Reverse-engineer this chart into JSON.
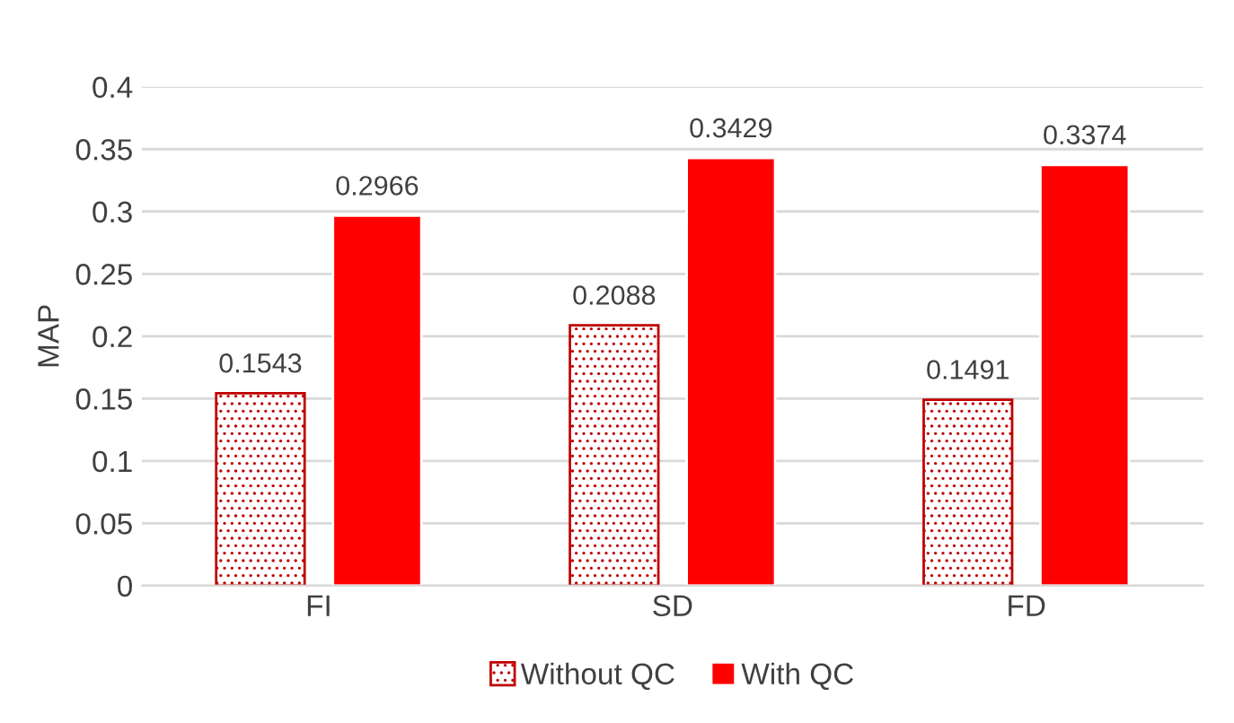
{
  "chart_data": {
    "type": "bar",
    "ylabel": "MAP",
    "categories": [
      "FI",
      "SD",
      "FD"
    ],
    "series": [
      {
        "name": "Without QC",
        "color": "#c00000",
        "values": [
          0.1543,
          0.2088,
          0.1491
        ]
      },
      {
        "name": "With QC",
        "color": "#ff0000",
        "values": [
          0.2966,
          0.3429,
          0.3374
        ]
      }
    ],
    "ylim": [
      0,
      0.4
    ],
    "yticks": [
      0,
      0.05,
      0.1,
      0.15,
      0.2,
      0.25,
      0.3,
      0.35,
      0.4
    ],
    "grid": "y",
    "legend": "bottom",
    "data_labels": true
  }
}
